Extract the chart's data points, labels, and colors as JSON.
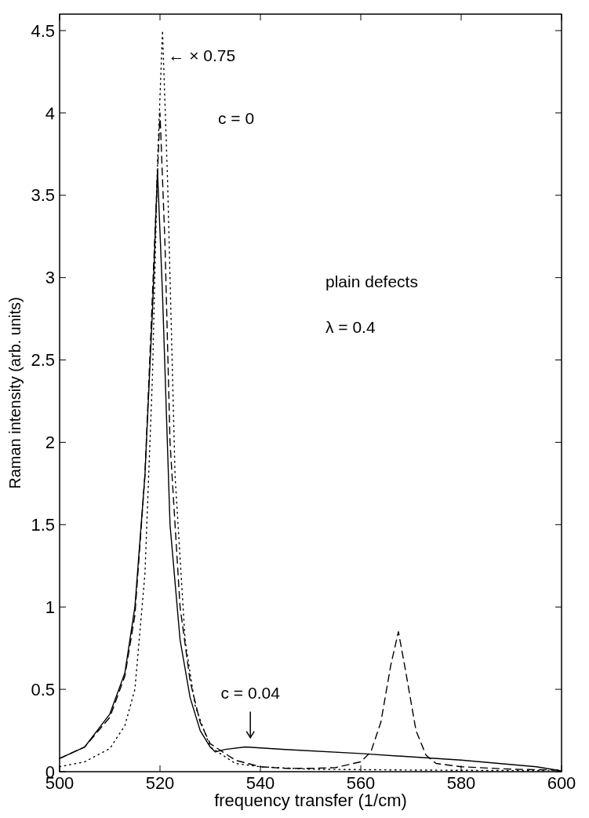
{
  "chart_data": {
    "type": "line",
    "xlabel": "frequency transfer (1/cm)",
    "ylabel": "Raman intensity (arb. units)",
    "xlim": [
      500,
      600
    ],
    "xticks": [
      500,
      520,
      540,
      560,
      580,
      600
    ],
    "ylim": [
      0,
      4.6
    ],
    "yticks": [
      0,
      0.5,
      1,
      1.5,
      2,
      2.5,
      3,
      3.5,
      4,
      4.5
    ],
    "grid": false,
    "series": [
      {
        "color": "#000000",
        "line_style": "solid",
        "x": [
          500,
          505,
          510,
          513,
          515,
          517,
          518.5,
          519.5,
          520.5,
          522,
          524,
          526,
          528,
          530,
          531,
          533,
          537,
          545,
          560,
          580,
          595,
          600
        ],
        "values": [
          0.08,
          0.15,
          0.35,
          0.6,
          1.0,
          1.8,
          2.8,
          3.65,
          2.9,
          1.5,
          0.8,
          0.45,
          0.25,
          0.15,
          0.12,
          0.135,
          0.15,
          0.135,
          0.11,
          0.07,
          0.03,
          0.005
        ]
      },
      {
        "color": "#000000",
        "line_style": "dashed",
        "x": [
          500,
          505,
          510,
          513,
          515,
          517,
          518.5,
          520,
          521,
          522,
          524,
          526,
          528,
          530,
          535,
          540,
          545,
          550,
          555,
          560,
          562,
          564,
          566,
          567.5,
          569,
          571,
          573,
          575,
          580,
          590,
          600
        ],
        "values": [
          0.08,
          0.15,
          0.33,
          0.58,
          0.95,
          1.8,
          2.9,
          4.0,
          3.2,
          2.0,
          1.0,
          0.55,
          0.3,
          0.17,
          0.07,
          0.03,
          0.02,
          0.02,
          0.025,
          0.06,
          0.12,
          0.3,
          0.65,
          0.85,
          0.6,
          0.25,
          0.1,
          0.05,
          0.03,
          0.015,
          0.01
        ]
      },
      {
        "color": "#000000",
        "line_style": "dotted",
        "x": [
          500,
          505,
          510,
          513,
          515,
          517,
          518.5,
          519.5,
          520.5,
          521.5,
          523,
          525,
          527,
          530,
          535,
          540,
          550,
          570,
          600
        ],
        "values": [
          0.03,
          0.06,
          0.14,
          0.28,
          0.5,
          1.2,
          2.4,
          3.7,
          4.5,
          3.6,
          1.8,
          0.8,
          0.4,
          0.15,
          0.05,
          0.03,
          0.015,
          0.01,
          0.005
        ]
      }
    ],
    "annotations": [
      {
        "text": "← × 0.75",
        "x": 521,
        "y": 4.35
      },
      "c = 0",
      "plain defects",
      "λ = 0.4",
      {
        "text": "c = 0.04",
        "x": 538,
        "y": 0.15
      }
    ]
  }
}
